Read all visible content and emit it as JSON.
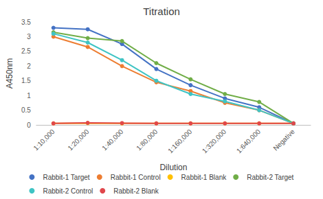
{
  "chart_data": {
    "type": "line",
    "title": "Titration",
    "x_label": "Dilution",
    "y_label": "A450nm",
    "categories": [
      "1:10,000",
      "1:20,000",
      "1:40,000",
      "1:80,000",
      "1:160,000",
      "1:320,000",
      "1:640,000",
      "Negative"
    ],
    "ylim": [
      0,
      3.5
    ],
    "yticks": [
      0,
      0.5,
      1,
      1.5,
      2,
      2.5,
      3,
      3.5
    ],
    "grid": false,
    "legend": "bottom",
    "marker": "circle",
    "line_style": "solid",
    "series": [
      {
        "name": "Rabbit-1 Target",
        "color": "#4472c4",
        "values": [
          3.3,
          3.25,
          2.75,
          1.9,
          1.35,
          0.9,
          0.6,
          0.05
        ]
      },
      {
        "name": "Rabbit-1 Control",
        "color": "#ed7d31",
        "values": [
          3.0,
          2.65,
          2.0,
          1.45,
          1.15,
          0.75,
          0.5,
          0.05
        ]
      },
      {
        "name": "Rabbit-1 Blank",
        "color": "#ffc000",
        "values": [
          0.05,
          0.06,
          0.05,
          0.05,
          0.05,
          0.05,
          0.05,
          0.05
        ]
      },
      {
        "name": "Rabbit-2 Target",
        "color": "#70ad47",
        "values": [
          3.15,
          2.95,
          2.85,
          2.1,
          1.55,
          1.05,
          0.78,
          0.05
        ]
      },
      {
        "name": "Rabbit-2 Control",
        "color": "#3fc4c4",
        "values": [
          3.1,
          2.8,
          2.2,
          1.5,
          1.05,
          0.8,
          0.5,
          0.05
        ]
      },
      {
        "name": "Rabbit-2 Blank",
        "color": "#e0474c",
        "values": [
          0.05,
          0.07,
          0.06,
          0.05,
          0.05,
          0.05,
          0.05,
          0.05
        ]
      }
    ]
  }
}
